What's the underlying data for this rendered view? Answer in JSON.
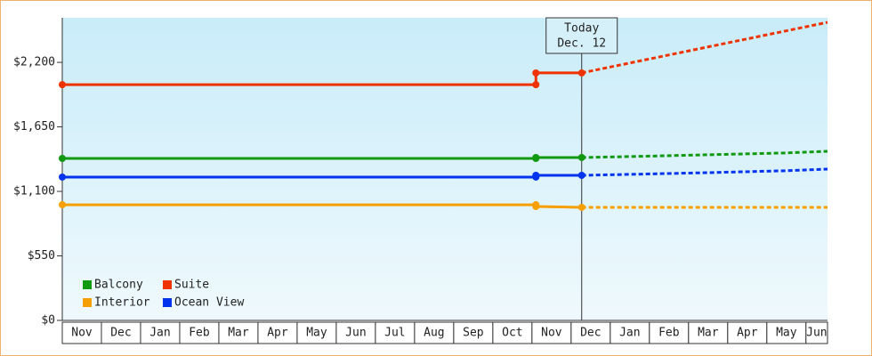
{
  "chart_data": {
    "type": "line",
    "categories": [
      "Nov",
      "Dec",
      "Jan",
      "Feb",
      "Mar",
      "Apr",
      "May",
      "Jun",
      "Jul",
      "Aug",
      "Sep",
      "Oct",
      "Nov",
      "Dec",
      "Jan",
      "Feb",
      "Mar",
      "Apr",
      "May",
      "Jun"
    ],
    "xlim": [
      0,
      19.55
    ],
    "ylim": [
      0,
      2580
    ],
    "yticks": [
      {
        "value": 0,
        "label": "$0"
      },
      {
        "value": 550,
        "label": "$550"
      },
      {
        "value": 1100,
        "label": "$1,100"
      },
      {
        "value": 1650,
        "label": "$1,650"
      },
      {
        "value": 2200,
        "label": "$2,200"
      }
    ],
    "legend": "lower-left",
    "annotation": {
      "x": 13.27,
      "lines": [
        "Today",
        "Dec. 12"
      ]
    },
    "series": [
      {
        "name": "Balcony",
        "color": "#119911",
        "x": [
          0,
          12.1,
          12.1,
          13.27
        ],
        "values": [
          1381,
          1381,
          1389,
          1389
        ],
        "forecast_x": [
          13.27,
          14.5,
          16.5,
          18.5,
          19.55
        ],
        "forecast_values": [
          1389,
          1397,
          1412,
          1428,
          1442
        ]
      },
      {
        "name": "Suite",
        "color": "#ee3300",
        "x": [
          0,
          12.1,
          12.1,
          13.27
        ],
        "values": [
          2010,
          2010,
          2110,
          2110
        ],
        "forecast_x": [
          13.27,
          19.55
        ],
        "forecast_values": [
          2110,
          2541
        ]
      },
      {
        "name": "Interior",
        "color": "#f5a000",
        "x": [
          0,
          12.1,
          12.1,
          13.27
        ],
        "values": [
          986,
          986,
          971,
          964
        ],
        "forecast_x": [
          13.27,
          19.55
        ],
        "forecast_values": [
          964,
          964
        ]
      },
      {
        "name": "Ocean View",
        "color": "#0033ee",
        "x": [
          0,
          12.1,
          12.1,
          13.27
        ],
        "values": [
          1222,
          1222,
          1237,
          1237
        ],
        "forecast_x": [
          13.27,
          14.5,
          16.5,
          18.5,
          19.55
        ],
        "forecast_values": [
          1237,
          1245,
          1260,
          1276,
          1290
        ]
      }
    ]
  }
}
